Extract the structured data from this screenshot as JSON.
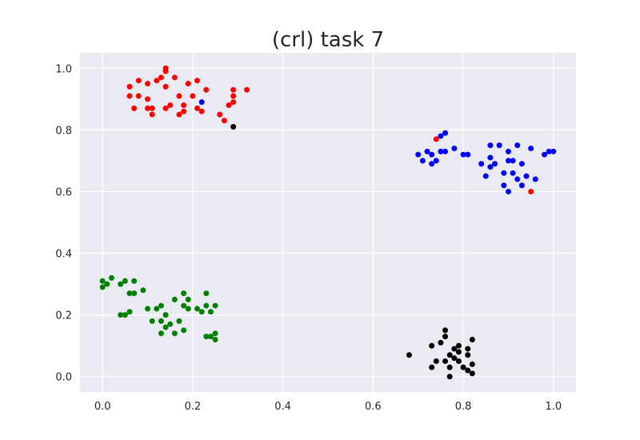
{
  "chart_data": {
    "type": "scatter",
    "title": "(crl) task 7",
    "xlabel": "",
    "ylabel": "",
    "xlim": [
      -0.05,
      1.05
    ],
    "ylim": [
      -0.05,
      1.05
    ],
    "xticks": [
      0.0,
      0.2,
      0.4,
      0.6,
      0.8,
      1.0
    ],
    "yticks": [
      0.0,
      0.2,
      0.4,
      0.6,
      0.8,
      1.0
    ],
    "xtick_labels": [
      "0.0",
      "0.2",
      "0.4",
      "0.6",
      "0.8",
      "1.0"
    ],
    "ytick_labels": [
      "0.0",
      "0.2",
      "0.4",
      "0.6",
      "0.8",
      "1.0"
    ],
    "grid": true,
    "background": "#eaeaf2",
    "series": [
      {
        "color": "#ff0000",
        "points": [
          [
            0.14,
            1.0
          ],
          [
            0.14,
            0.99
          ],
          [
            0.12,
            0.96
          ],
          [
            0.13,
            0.97
          ],
          [
            0.16,
            0.97
          ],
          [
            0.08,
            0.96
          ],
          [
            0.1,
            0.95
          ],
          [
            0.19,
            0.95
          ],
          [
            0.21,
            0.96
          ],
          [
            0.14,
            0.94
          ],
          [
            0.17,
            0.91
          ],
          [
            0.06,
            0.94
          ],
          [
            0.06,
            0.91
          ],
          [
            0.08,
            0.91
          ],
          [
            0.1,
            0.9
          ],
          [
            0.2,
            0.91
          ],
          [
            0.23,
            0.93
          ],
          [
            0.29,
            0.93
          ],
          [
            0.29,
            0.91
          ],
          [
            0.32,
            0.93
          ],
          [
            0.15,
            0.88
          ],
          [
            0.18,
            0.88
          ],
          [
            0.14,
            0.87
          ],
          [
            0.07,
            0.87
          ],
          [
            0.1,
            0.87
          ],
          [
            0.11,
            0.87
          ],
          [
            0.11,
            0.85
          ],
          [
            0.21,
            0.87
          ],
          [
            0.22,
            0.86
          ],
          [
            0.18,
            0.86
          ],
          [
            0.17,
            0.85
          ],
          [
            0.26,
            0.85
          ],
          [
            0.28,
            0.88
          ],
          [
            0.29,
            0.89
          ],
          [
            0.27,
            0.83
          ],
          [
            0.74,
            0.77
          ],
          [
            0.95,
            0.6
          ]
        ]
      },
      {
        "color": "#0000ff",
        "points": [
          [
            0.22,
            0.89
          ],
          [
            0.76,
            0.79
          ],
          [
            0.75,
            0.78
          ],
          [
            0.7,
            0.72
          ],
          [
            0.72,
            0.73
          ],
          [
            0.73,
            0.72
          ],
          [
            0.75,
            0.73
          ],
          [
            0.76,
            0.73
          ],
          [
            0.78,
            0.74
          ],
          [
            0.8,
            0.72
          ],
          [
            0.81,
            0.72
          ],
          [
            0.86,
            0.75
          ],
          [
            0.88,
            0.75
          ],
          [
            0.9,
            0.73
          ],
          [
            0.92,
            0.75
          ],
          [
            0.95,
            0.74
          ],
          [
            0.98,
            0.72
          ],
          [
            1.0,
            0.73
          ],
          [
            0.99,
            0.73
          ],
          [
            0.71,
            0.7
          ],
          [
            0.73,
            0.69
          ],
          [
            0.74,
            0.7
          ],
          [
            0.84,
            0.69
          ],
          [
            0.86,
            0.71
          ],
          [
            0.87,
            0.69
          ],
          [
            0.86,
            0.68
          ],
          [
            0.9,
            0.7
          ],
          [
            0.91,
            0.7
          ],
          [
            0.93,
            0.69
          ],
          [
            0.85,
            0.65
          ],
          [
            0.89,
            0.66
          ],
          [
            0.91,
            0.66
          ],
          [
            0.92,
            0.64
          ],
          [
            0.94,
            0.65
          ],
          [
            0.96,
            0.64
          ],
          [
            0.89,
            0.62
          ],
          [
            0.9,
            0.6
          ],
          [
            0.93,
            0.62
          ]
        ]
      },
      {
        "color": "#008000",
        "points": [
          [
            0.0,
            0.31
          ],
          [
            0.0,
            0.29
          ],
          [
            0.01,
            0.3
          ],
          [
            0.02,
            0.32
          ],
          [
            0.04,
            0.3
          ],
          [
            0.05,
            0.31
          ],
          [
            0.07,
            0.31
          ],
          [
            0.07,
            0.27
          ],
          [
            0.06,
            0.27
          ],
          [
            0.09,
            0.28
          ],
          [
            0.04,
            0.2
          ],
          [
            0.05,
            0.2
          ],
          [
            0.06,
            0.21
          ],
          [
            0.1,
            0.22
          ],
          [
            0.12,
            0.22
          ],
          [
            0.13,
            0.23
          ],
          [
            0.14,
            0.2
          ],
          [
            0.16,
            0.25
          ],
          [
            0.18,
            0.27
          ],
          [
            0.19,
            0.25
          ],
          [
            0.18,
            0.23
          ],
          [
            0.19,
            0.22
          ],
          [
            0.21,
            0.22
          ],
          [
            0.22,
            0.21
          ],
          [
            0.23,
            0.23
          ],
          [
            0.23,
            0.27
          ],
          [
            0.25,
            0.23
          ],
          [
            0.24,
            0.21
          ],
          [
            0.11,
            0.18
          ],
          [
            0.13,
            0.18
          ],
          [
            0.17,
            0.18
          ],
          [
            0.14,
            0.16
          ],
          [
            0.15,
            0.17
          ],
          [
            0.13,
            0.14
          ],
          [
            0.16,
            0.14
          ],
          [
            0.18,
            0.15
          ],
          [
            0.23,
            0.13
          ],
          [
            0.24,
            0.13
          ],
          [
            0.25,
            0.14
          ],
          [
            0.25,
            0.12
          ]
        ]
      },
      {
        "color": "#000000",
        "points": [
          [
            0.29,
            0.81
          ],
          [
            0.76,
            0.15
          ],
          [
            0.76,
            0.13
          ],
          [
            0.75,
            0.11
          ],
          [
            0.73,
            0.1
          ],
          [
            0.82,
            0.12
          ],
          [
            0.78,
            0.09
          ],
          [
            0.79,
            0.1
          ],
          [
            0.81,
            0.09
          ],
          [
            0.77,
            0.07
          ],
          [
            0.79,
            0.08
          ],
          [
            0.81,
            0.07
          ],
          [
            0.68,
            0.07
          ],
          [
            0.76,
            0.05
          ],
          [
            0.78,
            0.06
          ],
          [
            0.74,
            0.05
          ],
          [
            0.79,
            0.05
          ],
          [
            0.82,
            0.04
          ],
          [
            0.77,
            0.03
          ],
          [
            0.73,
            0.03
          ],
          [
            0.8,
            0.03
          ],
          [
            0.81,
            0.02
          ],
          [
            0.77,
            0.0
          ],
          [
            0.82,
            0.01
          ]
        ]
      }
    ]
  }
}
